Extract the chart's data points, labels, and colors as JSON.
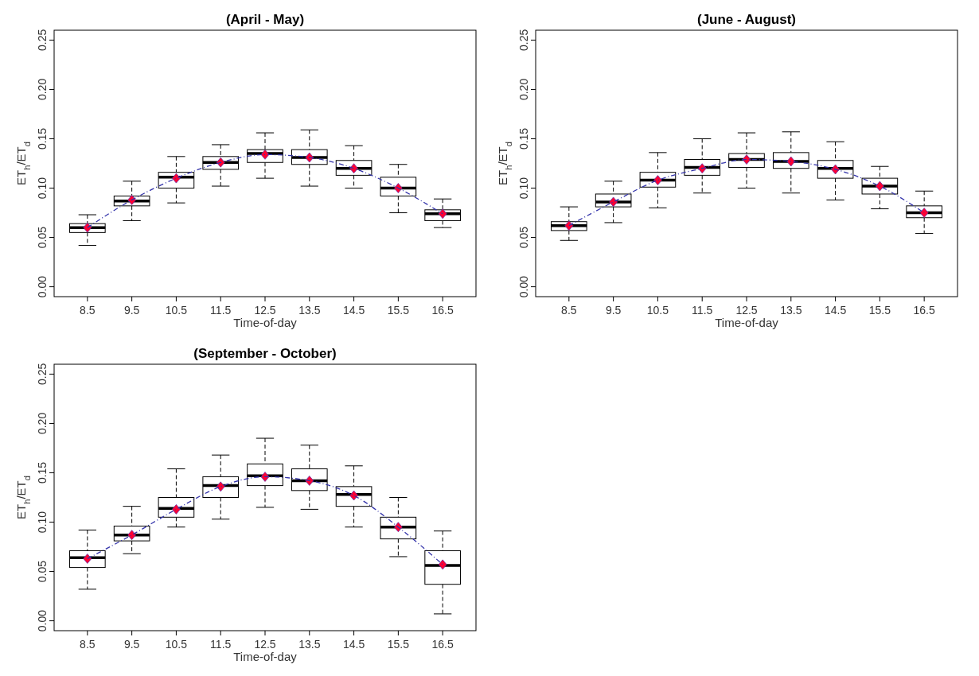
{
  "chart_data": [
    {
      "type": "box",
      "title": "(April - May)",
      "xlabel": "Time-of-day",
      "ylabel": "ET$_{h}$/ET$_{d}$",
      "categories": [
        "8.5",
        "9.5",
        "10.5",
        "11.5",
        "12.5",
        "13.5",
        "14.5",
        "15.5",
        "16.5"
      ],
      "ylim": [
        -0.01,
        0.26
      ],
      "yticks": [
        {
          "value": 0,
          "label": "0.00"
        },
        {
          "value": 0.05,
          "label": "0.05"
        },
        {
          "value": 0.1,
          "label": "0.10"
        },
        {
          "value": 0.15,
          "label": "0.15"
        },
        {
          "value": 0.2,
          "label": "0.20"
        },
        {
          "value": 0.25,
          "label": "0.25"
        }
      ],
      "grid": false,
      "boxes": [
        {
          "low": 0.042,
          "q1": 0.055,
          "median": 0.06,
          "q3": 0.064,
          "high": 0.073,
          "mean": 0.06
        },
        {
          "low": 0.067,
          "q1": 0.082,
          "median": 0.087,
          "q3": 0.092,
          "high": 0.107,
          "mean": 0.088
        },
        {
          "low": 0.085,
          "q1": 0.1,
          "median": 0.111,
          "q3": 0.116,
          "high": 0.132,
          "mean": 0.11
        },
        {
          "low": 0.102,
          "q1": 0.119,
          "median": 0.126,
          "q3": 0.132,
          "high": 0.144,
          "mean": 0.126
        },
        {
          "low": 0.11,
          "q1": 0.126,
          "median": 0.135,
          "q3": 0.139,
          "high": 0.156,
          "mean": 0.134
        },
        {
          "low": 0.102,
          "q1": 0.124,
          "median": 0.131,
          "q3": 0.139,
          "high": 0.159,
          "mean": 0.131
        },
        {
          "low": 0.1,
          "q1": 0.113,
          "median": 0.12,
          "q3": 0.128,
          "high": 0.143,
          "mean": 0.12
        },
        {
          "low": 0.075,
          "q1": 0.092,
          "median": 0.1,
          "q3": 0.111,
          "high": 0.124,
          "mean": 0.1
        },
        {
          "low": 0.06,
          "q1": 0.067,
          "median": 0.074,
          "q3": 0.078,
          "high": 0.089,
          "mean": 0.074
        }
      ],
      "series": [
        {
          "type": "line",
          "color": "#3333aa",
          "line_style": "dashed",
          "values": [
            0.06,
            0.088,
            0.11,
            0.126,
            0.134,
            0.131,
            0.12,
            0.1,
            0.074
          ]
        }
      ]
    },
    {
      "type": "box",
      "title": "(June - August)",
      "xlabel": "Time-of-day",
      "ylabel": "ET$_{h}$/ET$_{d}$",
      "categories": [
        "8.5",
        "9.5",
        "10.5",
        "11.5",
        "12.5",
        "13.5",
        "14.5",
        "15.5",
        "16.5"
      ],
      "ylim": [
        -0.01,
        0.26
      ],
      "yticks": [
        {
          "value": 0,
          "label": "0.00"
        },
        {
          "value": 0.05,
          "label": "0.05"
        },
        {
          "value": 0.1,
          "label": "0.10"
        },
        {
          "value": 0.15,
          "label": "0.15"
        },
        {
          "value": 0.2,
          "label": "0.20"
        },
        {
          "value": 0.25,
          "label": "0.25"
        }
      ],
      "grid": false,
      "boxes": [
        {
          "low": 0.047,
          "q1": 0.057,
          "median": 0.062,
          "q3": 0.066,
          "high": 0.081,
          "mean": 0.062
        },
        {
          "low": 0.065,
          "q1": 0.081,
          "median": 0.086,
          "q3": 0.094,
          "high": 0.107,
          "mean": 0.086
        },
        {
          "low": 0.08,
          "q1": 0.101,
          "median": 0.108,
          "q3": 0.116,
          "high": 0.136,
          "mean": 0.108
        },
        {
          "low": 0.095,
          "q1": 0.113,
          "median": 0.121,
          "q3": 0.129,
          "high": 0.15,
          "mean": 0.12
        },
        {
          "low": 0.1,
          "q1": 0.121,
          "median": 0.129,
          "q3": 0.135,
          "high": 0.156,
          "mean": 0.129
        },
        {
          "low": 0.095,
          "q1": 0.12,
          "median": 0.127,
          "q3": 0.136,
          "high": 0.157,
          "mean": 0.127
        },
        {
          "low": 0.088,
          "q1": 0.11,
          "median": 0.12,
          "q3": 0.128,
          "high": 0.147,
          "mean": 0.119
        },
        {
          "low": 0.079,
          "q1": 0.094,
          "median": 0.102,
          "q3": 0.11,
          "high": 0.122,
          "mean": 0.102
        },
        {
          "low": 0.054,
          "q1": 0.07,
          "median": 0.075,
          "q3": 0.082,
          "high": 0.097,
          "mean": 0.075
        }
      ],
      "series": [
        {
          "type": "line",
          "color": "#3333aa",
          "line_style": "dashed",
          "values": [
            0.062,
            0.086,
            0.108,
            0.12,
            0.129,
            0.127,
            0.119,
            0.102,
            0.075
          ]
        }
      ]
    },
    {
      "type": "box",
      "title": "(September - October)",
      "xlabel": "Time-of-day",
      "ylabel": "ET$_{h}$/ET$_{d}$",
      "categories": [
        "8.5",
        "9.5",
        "10.5",
        "11.5",
        "12.5",
        "13.5",
        "14.5",
        "15.5",
        "16.5"
      ],
      "ylim": [
        -0.01,
        0.26
      ],
      "yticks": [
        {
          "value": 0,
          "label": "0.00"
        },
        {
          "value": 0.05,
          "label": "0.05"
        },
        {
          "value": 0.1,
          "label": "0.10"
        },
        {
          "value": 0.15,
          "label": "0.15"
        },
        {
          "value": 0.2,
          "label": "0.20"
        },
        {
          "value": 0.25,
          "label": "0.25"
        }
      ],
      "grid": false,
      "boxes": [
        {
          "low": 0.032,
          "q1": 0.054,
          "median": 0.064,
          "q3": 0.071,
          "high": 0.092,
          "mean": 0.063
        },
        {
          "low": 0.068,
          "q1": 0.081,
          "median": 0.087,
          "q3": 0.096,
          "high": 0.116,
          "mean": 0.087
        },
        {
          "low": 0.095,
          "q1": 0.105,
          "median": 0.114,
          "q3": 0.125,
          "high": 0.154,
          "mean": 0.113
        },
        {
          "low": 0.103,
          "q1": 0.125,
          "median": 0.137,
          "q3": 0.146,
          "high": 0.168,
          "mean": 0.136
        },
        {
          "low": 0.115,
          "q1": 0.137,
          "median": 0.147,
          "q3": 0.159,
          "high": 0.185,
          "mean": 0.146
        },
        {
          "low": 0.113,
          "q1": 0.132,
          "median": 0.142,
          "q3": 0.154,
          "high": 0.178,
          "mean": 0.142
        },
        {
          "low": 0.095,
          "q1": 0.116,
          "median": 0.128,
          "q3": 0.136,
          "high": 0.157,
          "mean": 0.127
        },
        {
          "low": 0.065,
          "q1": 0.083,
          "median": 0.095,
          "q3": 0.105,
          "high": 0.125,
          "mean": 0.095
        },
        {
          "low": 0.007,
          "q1": 0.037,
          "median": 0.056,
          "q3": 0.071,
          "high": 0.091,
          "mean": 0.057
        }
      ],
      "series": [
        {
          "type": "line",
          "color": "#3333aa",
          "line_style": "dashed",
          "values": [
            0.063,
            0.087,
            0.113,
            0.136,
            0.146,
            0.142,
            0.127,
            0.095,
            0.057
          ]
        }
      ]
    }
  ]
}
